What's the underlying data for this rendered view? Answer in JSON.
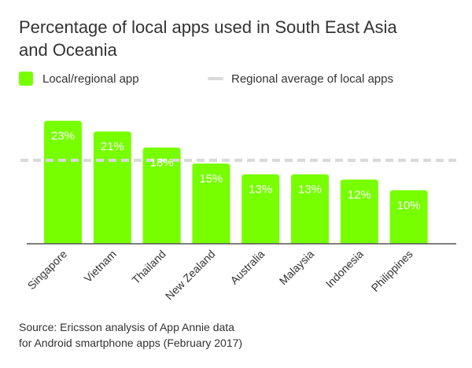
{
  "title_line1": "Percentage of local apps used in South East Asia",
  "title_line2": "and Oceania",
  "legend": {
    "bar_label": "Local/regional app",
    "line_label": "Regional average of local apps"
  },
  "colors": {
    "bar": "#77ff00",
    "bar_label_text": "#ffffff",
    "average_line": "#d9d9d9",
    "baseline": "#555555",
    "text": "#333333"
  },
  "chart_data": {
    "type": "bar",
    "categories": [
      "Singapore",
      "Vietnam",
      "Thailand",
      "New Zealand",
      "Australia",
      "Malaysia",
      "Indonesia",
      "Philippines"
    ],
    "values": [
      23,
      21,
      18,
      15,
      13,
      13,
      12,
      10
    ],
    "value_labels": [
      "23%",
      "21%",
      "18%",
      "15%",
      "13%",
      "13%",
      "12%",
      "10%"
    ],
    "regional_average": 15.6,
    "ylim": [
      0,
      25
    ],
    "grid": false,
    "legend_position": "top-left",
    "xlabel": "",
    "ylabel": ""
  },
  "source_line1": "Source: Ericsson analysis of App Annie data",
  "source_line2": "for Android smartphone apps (February 2017)"
}
